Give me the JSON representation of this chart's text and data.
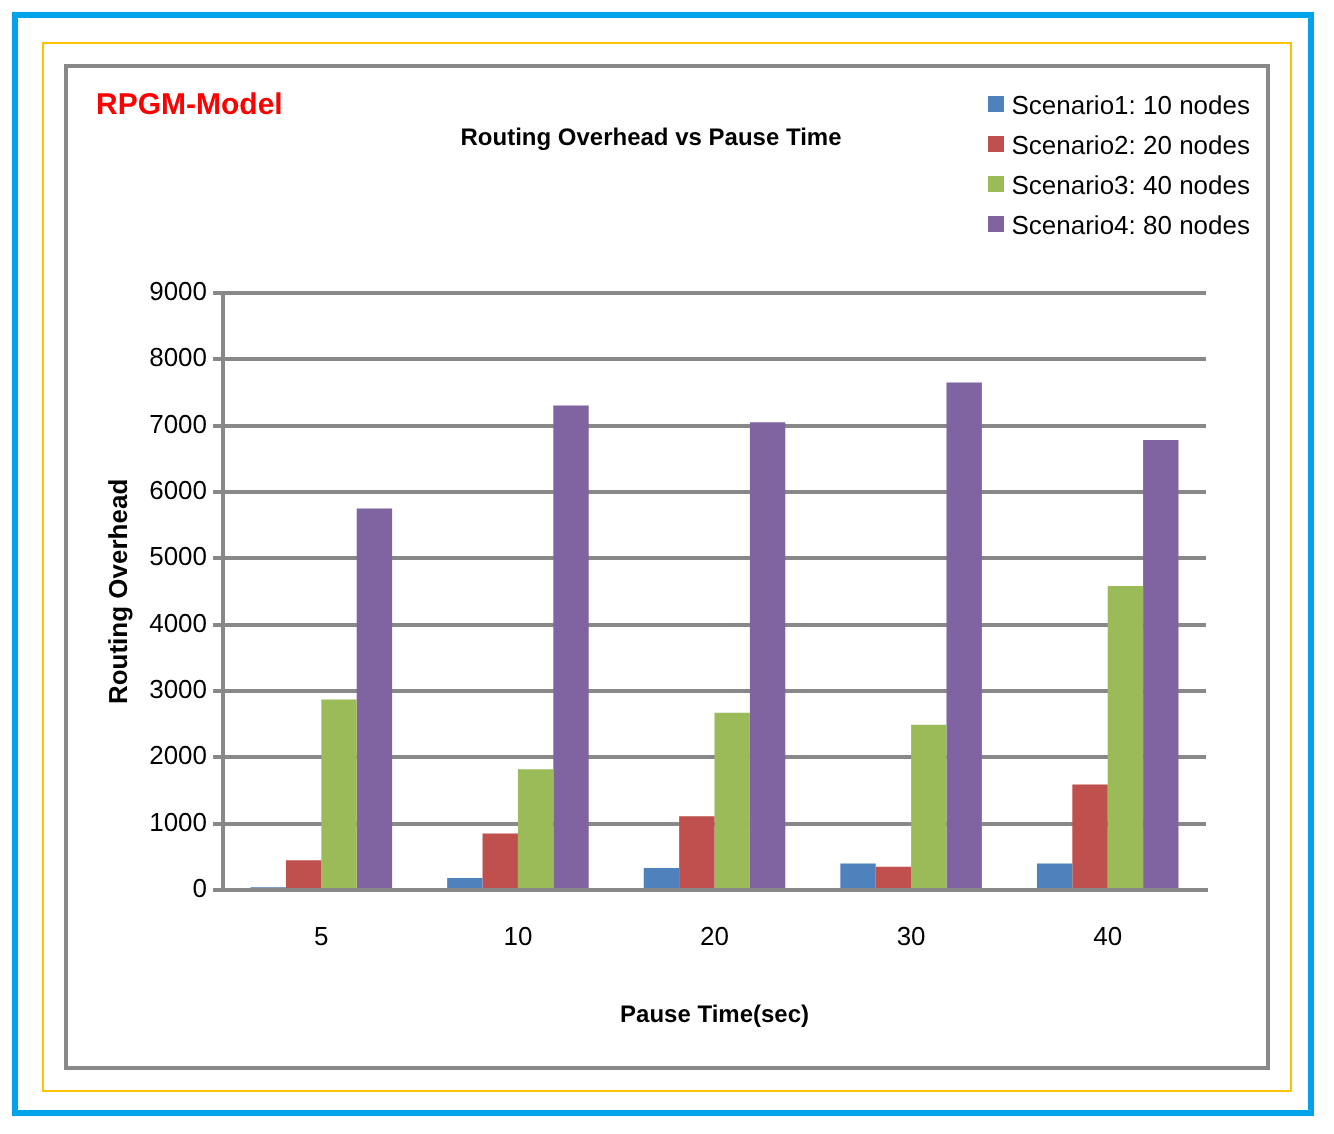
{
  "chart_data": {
    "type": "bar",
    "title": "Routing Overhead vs Pause Time",
    "xlabel": "Pause Time(sec)",
    "ylabel": "Routing Overhead",
    "annotations": [
      "RPGM-Model"
    ],
    "categories": [
      "5",
      "10",
      "20",
      "30",
      "40"
    ],
    "series": [
      {
        "name": "Scenario1: 10 nodes",
        "color": "#4f81bd",
        "values": [
          40,
          180,
          330,
          400,
          400
        ]
      },
      {
        "name": "Scenario2: 20 nodes",
        "color": "#c0504d",
        "values": [
          450,
          850,
          1110,
          350,
          1590
        ]
      },
      {
        "name": "Scenario3: 40 nodes",
        "color": "#9bbb59",
        "values": [
          2870,
          1820,
          2670,
          2490,
          4580
        ]
      },
      {
        "name": "Scenario4: 80 nodes",
        "color": "#8064a2",
        "values": [
          5750,
          7300,
          7050,
          7650,
          6780
        ]
      }
    ],
    "ylim": [
      0,
      9000
    ],
    "yticks": [
      0,
      1000,
      2000,
      3000,
      4000,
      5000,
      6000,
      7000,
      8000,
      9000
    ],
    "grid": "y",
    "legend": "top right"
  }
}
